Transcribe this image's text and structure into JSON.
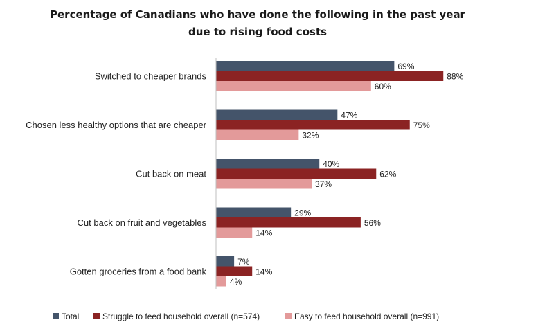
{
  "chart_data": {
    "type": "bar",
    "orientation": "horizontal",
    "title_lines": [
      "Percentage of Canadians who have done the following in the past year",
      "due to rising food costs"
    ],
    "categories": [
      "Switched to cheaper brands",
      "Chosen less healthy options that are cheaper",
      "Cut back on meat",
      "Cut back on fruit and vegetables",
      "Gotten groceries from a food bank"
    ],
    "series": [
      {
        "name": "Total",
        "color": "#44546a",
        "values": [
          69,
          47,
          40,
          29,
          7
        ],
        "labels": [
          "69%",
          "47%",
          "40%",
          "29%",
          "7%"
        ]
      },
      {
        "name": "Struggle to feed household overall (n=574)",
        "color": "#8b2323",
        "values": [
          88,
          75,
          62,
          56,
          14
        ],
        "labels": [
          "88%",
          "75%",
          "62%",
          "56%",
          "14%"
        ]
      },
      {
        "name": "Easy to feed household overall (n=991)",
        "color": "#e39a9a",
        "values": [
          60,
          32,
          37,
          14,
          4
        ],
        "labels": [
          "60%",
          "32%",
          "37%",
          "14%",
          "4%"
        ]
      }
    ],
    "xlim": [
      0,
      100
    ],
    "grid": false,
    "legend_position": "bottom"
  }
}
